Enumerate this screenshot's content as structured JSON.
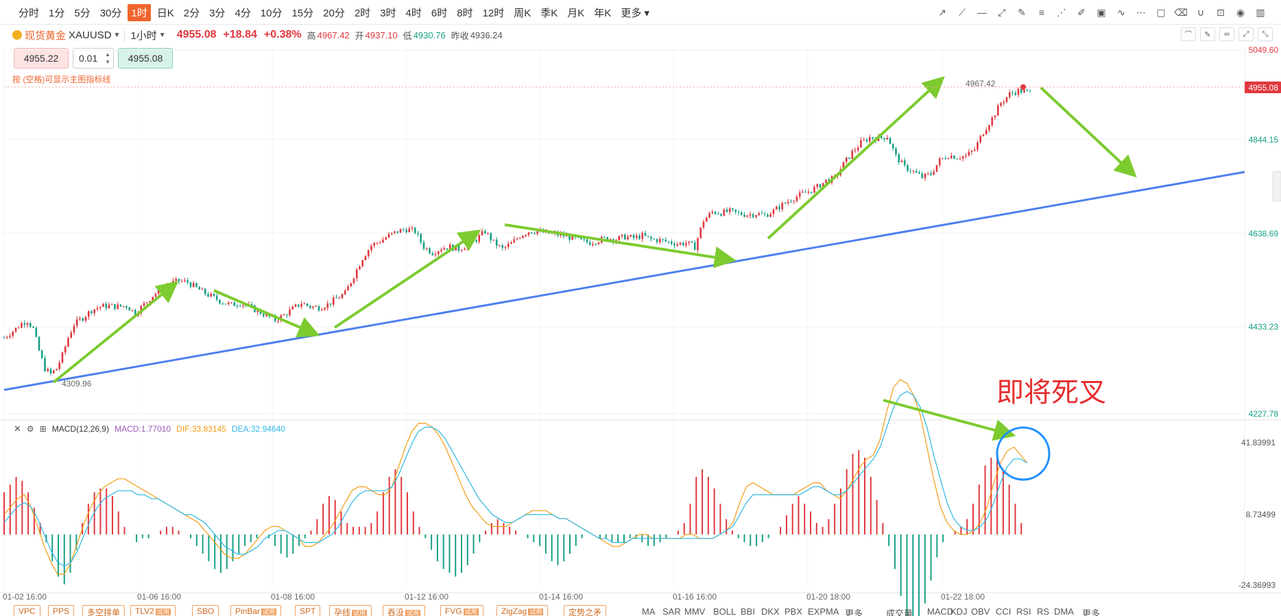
{
  "toolbar": {
    "periods": [
      "分时",
      "1分",
      "5分",
      "30分",
      "1时",
      "日K",
      "2分",
      "3分",
      "4分",
      "10分",
      "15分",
      "20分",
      "2时",
      "3时",
      "4时",
      "6时",
      "8时",
      "12时",
      "周K",
      "季K",
      "月K",
      "年K",
      "更多"
    ],
    "active_period": "1时"
  },
  "symbol": {
    "name": "现货黄金",
    "code": "XAUUSD",
    "timeframe": "1小时",
    "price": "4955.08",
    "change": "+18.84",
    "change_pct": "+0.38%",
    "high_label": "高",
    "high": "4967.42",
    "open_label": "开",
    "open": "4937.10",
    "low_label": "低",
    "low": "4930.76",
    "prev_label": "昨收",
    "prev": "4936.24"
  },
  "order": {
    "sell_price": "4955.22",
    "quantity": "0.01",
    "buy_price": "4955.08"
  },
  "hint": "按 (空格)可显示主图指标线",
  "main_chart": {
    "y_ticks": [
      "5049.60",
      "4844.15",
      "4638.69",
      "4433.23",
      "4227.78"
    ],
    "current_price_tag": "4955.08",
    "high_marker": "4967.42",
    "low_marker": "4309.96",
    "x_ticks": [
      "01-02 16:00",
      "01-06 16:00",
      "01-08 16:00",
      "01-12 16:00",
      "01-14 16:00",
      "01-16 16:00",
      "01-20 18:00",
      "01-22 18:00"
    ]
  },
  "macd": {
    "name": "MACD(12,26,9)",
    "macd_label": "MACD:1.77010",
    "dif_label": "DIF:33.83145",
    "dea_label": "DEA:32.94640",
    "y_ticks": [
      "41.83991",
      "8.73499",
      "-24.36993"
    ]
  },
  "annotation": "即将死叉",
  "colors": {
    "up": "#e0373e",
    "down": "#16a085",
    "trendline": "#4f7ff0",
    "arrow": "#7ccb2f",
    "circle": "#1e90ff",
    "dif": "#f39c12",
    "dea": "#2bb7e3"
  },
  "bottom_indicators": {
    "main": [
      {
        "label": "VPC",
        "trial": ""
      },
      {
        "label": "PPS",
        "trial": ""
      },
      {
        "label": "多空排单",
        "trial": ""
      },
      {
        "label": "TLV2",
        "trial": "试用"
      },
      {
        "label": "SBO",
        "trial": ""
      },
      {
        "label": "PinBar",
        "trial": "试用"
      },
      {
        "label": "SPT",
        "trial": ""
      },
      {
        "label": "孕线",
        "trial": "试用"
      },
      {
        "label": "吞没",
        "trial": "试用"
      },
      {
        "label": "FVG",
        "trial": "试用"
      },
      {
        "label": "ZigZag",
        "trial": "试用"
      },
      {
        "label": "定势之矛",
        "trial": ""
      }
    ],
    "overlay": [
      "MA",
      "SAR",
      "MMV",
      "BOLL",
      "BBI",
      "DKX",
      "PBX",
      "EXPMA",
      "更多"
    ],
    "sub": [
      "成交量",
      "MACD",
      "KDJ",
      "OBV",
      "CCI",
      "RSI",
      "RS",
      "DMA",
      "更多"
    ]
  },
  "chart_data": {
    "type": "candlestick",
    "symbol": "XAUUSD",
    "interval": "1h",
    "x_tick_labels": [
      "01-02 16:00",
      "01-06 16:00",
      "01-08 16:00",
      "01-12 16:00",
      "01-14 16:00",
      "01-16 16:00",
      "01-20 18:00",
      "01-22 18:00"
    ],
    "ylim": [
      4227.78,
      5049.6
    ],
    "close_path": [
      [
        0,
        4400
      ],
      [
        4,
        4420
      ],
      [
        6,
        4432
      ],
      [
        8,
        4438
      ],
      [
        10,
        4420
      ],
      [
        12,
        4370
      ],
      [
        14,
        4330
      ],
      [
        16,
        4318
      ],
      [
        18,
        4330
      ],
      [
        20,
        4360
      ],
      [
        22,
        4400
      ],
      [
        24,
        4430
      ],
      [
        27,
        4445
      ],
      [
        30,
        4462
      ],
      [
        33,
        4470
      ],
      [
        36,
        4472
      ],
      [
        39,
        4470
      ],
      [
        42,
        4472
      ],
      [
        45,
        4455
      ],
      [
        48,
        4475
      ],
      [
        51,
        4495
      ],
      [
        54,
        4510
      ],
      [
        57,
        4522
      ],
      [
        60,
        4528
      ],
      [
        63,
        4525
      ],
      [
        66,
        4512
      ],
      [
        69,
        4500
      ],
      [
        72,
        4490
      ],
      [
        75,
        4480
      ],
      [
        78,
        4474
      ],
      [
        81,
        4478
      ],
      [
        84,
        4470
      ],
      [
        87,
        4460
      ],
      [
        90,
        4450
      ],
      [
        93,
        4440
      ],
      [
        96,
        4450
      ],
      [
        99,
        4465
      ],
      [
        102,
        4478
      ],
      [
        105,
        4470
      ],
      [
        108,
        4468
      ],
      [
        111,
        4475
      ],
      [
        114,
        4488
      ],
      [
        117,
        4500
      ],
      [
        120,
        4540
      ],
      [
        123,
        4580
      ],
      [
        126,
        4608
      ],
      [
        129,
        4618
      ],
      [
        132,
        4630
      ],
      [
        135,
        4640
      ],
      [
        138,
        4645
      ],
      [
        141,
        4640
      ],
      [
        144,
        4605
      ],
      [
        147,
        4592
      ],
      [
        150,
        4602
      ],
      [
        153,
        4605
      ],
      [
        156,
        4600
      ],
      [
        159,
        4610
      ],
      [
        162,
        4622
      ],
      [
        165,
        4640
      ],
      [
        168,
        4615
      ],
      [
        171,
        4600
      ],
      [
        174,
        4612
      ],
      [
        177,
        4630
      ],
      [
        180,
        4640
      ],
      [
        183,
        4640
      ],
      [
        186,
        4636
      ],
      [
        189,
        4634
      ],
      [
        192,
        4630
      ],
      [
        195,
        4625
      ],
      [
        198,
        4618
      ],
      [
        201,
        4615
      ],
      [
        204,
        4620
      ],
      [
        207,
        4625
      ],
      [
        210,
        4622
      ],
      [
        213,
        4628
      ],
      [
        216,
        4625
      ],
      [
        219,
        4630
      ],
      [
        222,
        4622
      ],
      [
        225,
        4620
      ],
      [
        228,
        4616
      ],
      [
        231,
        4612
      ],
      [
        234,
        4614
      ],
      [
        237,
        4605
      ],
      [
        240,
        4665
      ],
      [
        243,
        4684
      ],
      [
        246,
        4682
      ],
      [
        249,
        4685
      ],
      [
        252,
        4680
      ],
      [
        255,
        4678
      ],
      [
        258,
        4680
      ],
      [
        261,
        4676
      ],
      [
        264,
        4686
      ],
      [
        267,
        4700
      ],
      [
        270,
        4712
      ],
      [
        273,
        4722
      ],
      [
        276,
        4730
      ],
      [
        279,
        4740
      ],
      [
        282,
        4754
      ],
      [
        285,
        4760
      ],
      [
        288,
        4792
      ],
      [
        291,
        4818
      ],
      [
        294,
        4840
      ],
      [
        297,
        4852
      ],
      [
        300,
        4850
      ],
      [
        303,
        4855
      ],
      [
        306,
        4810
      ],
      [
        309,
        4785
      ],
      [
        312,
        4775
      ],
      [
        315,
        4762
      ],
      [
        318,
        4770
      ],
      [
        321,
        4800
      ],
      [
        324,
        4812
      ],
      [
        327,
        4808
      ],
      [
        330,
        4810
      ],
      [
        333,
        4825
      ],
      [
        336,
        4865
      ],
      [
        339,
        4895
      ],
      [
        342,
        4930
      ],
      [
        345,
        4950
      ],
      [
        348,
        4958
      ],
      [
        351,
        4955
      ]
    ],
    "series": [
      {
        "name": "MACD",
        "values_note": "histogram"
      },
      {
        "name": "DIF"
      },
      {
        "name": "DEA"
      }
    ],
    "macd_hist": [
      22,
      26,
      30,
      28,
      22,
      14,
      6,
      -4,
      -14,
      -22,
      -26,
      -20,
      -8,
      6,
      16,
      22,
      24,
      24,
      20,
      12,
      4,
      0,
      -4,
      -2,
      -2,
      0,
      2,
      4,
      4,
      2,
      0,
      -2,
      -6,
      -10,
      -14,
      -18,
      -20,
      -18,
      -14,
      -10,
      -6,
      -4,
      -2,
      0,
      -2,
      -6,
      -10,
      -12,
      -10,
      -6,
      -2,
      2,
      8,
      16,
      20,
      18,
      12,
      6,
      4,
      4,
      4,
      6,
      12,
      22,
      30,
      34,
      30,
      22,
      12,
      4,
      -2,
      -8,
      -14,
      -18,
      -20,
      -22,
      -20,
      -16,
      -10,
      -4,
      2,
      6,
      8,
      6,
      4,
      2,
      0,
      -2,
      -4,
      -6,
      -10,
      -14,
      -16,
      -14,
      -10,
      -6,
      -2,
      0,
      0,
      -2,
      -2,
      -4,
      -4,
      -4,
      -2,
      -2,
      -4,
      -6,
      -6,
      -4,
      -2,
      0,
      2,
      6,
      16,
      30,
      34,
      30,
      24,
      16,
      8,
      2,
      -2,
      -4,
      -6,
      -6,
      -4,
      -2,
      0,
      4,
      10,
      16,
      20,
      16,
      12,
      6,
      4,
      8,
      16,
      24,
      34,
      42,
      44,
      40,
      30,
      18,
      6,
      -6,
      -18,
      -32,
      -44,
      -50,
      -46,
      -36,
      -24,
      -12,
      -4,
      0,
      2,
      4,
      8,
      16,
      26,
      36,
      40,
      40,
      34,
      26,
      16,
      6
    ],
    "dif": [
      10,
      14,
      18,
      20,
      14,
      4,
      -6,
      -14,
      -20,
      -20,
      -14,
      -4,
      6,
      14,
      20,
      24,
      26,
      28,
      28,
      26,
      24,
      22,
      20,
      18,
      16,
      14,
      12,
      10,
      8,
      6,
      2,
      -2,
      -6,
      -10,
      -12,
      -12,
      -10,
      -6,
      -2,
      2,
      4,
      4,
      2,
      0,
      -2,
      -6,
      -6,
      -4,
      0,
      4,
      10,
      16,
      22,
      24,
      24,
      22,
      20,
      20,
      24,
      34,
      44,
      52,
      56,
      56,
      54,
      50,
      44,
      36,
      28,
      20,
      14,
      10,
      6,
      4,
      4,
      4,
      6,
      8,
      10,
      12,
      12,
      12,
      10,
      8,
      8,
      6,
      4,
      2,
      0,
      -2,
      -4,
      -6,
      -6,
      -4,
      -2,
      0,
      0,
      -2,
      -2,
      -2,
      -2,
      -2,
      0,
      0,
      -2,
      -2,
      -2,
      0,
      2,
      6,
      16,
      24,
      26,
      24,
      22,
      20,
      20,
      20,
      20,
      22,
      24,
      26,
      26,
      22,
      20,
      18,
      22,
      28,
      34,
      38,
      40,
      48,
      62,
      74,
      78,
      76,
      70,
      60,
      44,
      28,
      14,
      6,
      2,
      0,
      0,
      2,
      6,
      14,
      26,
      36,
      42,
      44,
      40,
      36
    ],
    "dea": [
      6,
      10,
      14,
      16,
      14,
      8,
      0,
      -8,
      -14,
      -16,
      -14,
      -8,
      0,
      8,
      14,
      18,
      20,
      22,
      22,
      22,
      20,
      20,
      18,
      18,
      16,
      14,
      12,
      10,
      10,
      8,
      6,
      2,
      -2,
      -6,
      -8,
      -10,
      -10,
      -8,
      -6,
      -2,
      0,
      2,
      2,
      0,
      -2,
      -4,
      -4,
      -4,
      -2,
      0,
      4,
      10,
      16,
      20,
      22,
      22,
      22,
      22,
      24,
      30,
      38,
      46,
      52,
      54,
      54,
      52,
      48,
      42,
      36,
      30,
      24,
      18,
      14,
      10,
      8,
      6,
      6,
      8,
      10,
      10,
      10,
      10,
      10,
      8,
      8,
      6,
      4,
      2,
      0,
      -2,
      -2,
      -4,
      -4,
      -4,
      -2,
      -2,
      -2,
      -2,
      -2,
      -2,
      -2,
      -2,
      -2,
      -2,
      -2,
      -2,
      -2,
      0,
      2,
      4,
      10,
      16,
      20,
      20,
      20,
      20,
      20,
      20,
      20,
      20,
      22,
      24,
      24,
      22,
      20,
      20,
      22,
      26,
      30,
      34,
      38,
      44,
      54,
      64,
      70,
      72,
      70,
      64,
      54,
      40,
      28,
      16,
      8,
      4,
      2,
      2,
      4,
      8,
      16,
      26,
      34,
      38,
      38,
      36
    ]
  }
}
